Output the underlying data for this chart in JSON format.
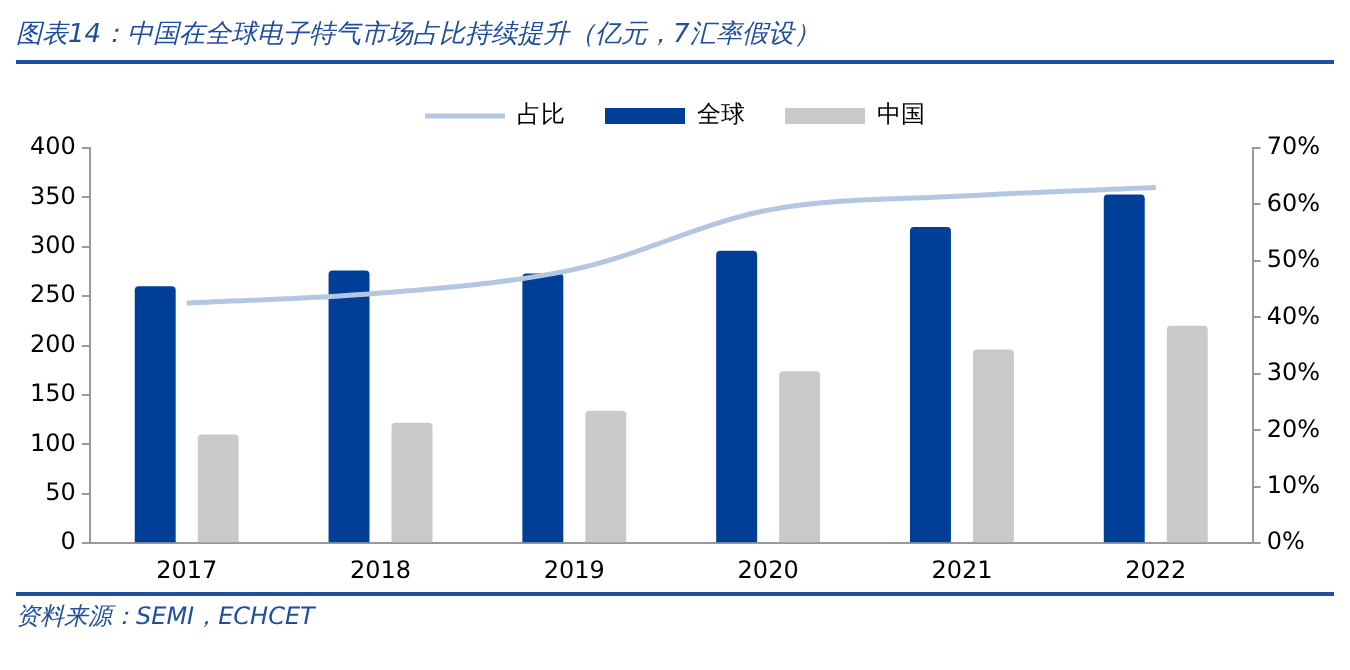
{
  "chart_data": {
    "type": "bar",
    "title": "图表14：中国在全球电子特气市场占比持续提升（亿元，7汇率假设）",
    "annotations": [
      "资料来源：SEMI，ECHCET"
    ],
    "categories": [
      "2017",
      "2018",
      "2019",
      "2020",
      "2021",
      "2022"
    ],
    "series": [
      {
        "name": "全球",
        "color": "#003f98",
        "values": [
          260,
          276,
          273,
          296,
          320,
          353
        ]
      },
      {
        "name": "中国",
        "color": "#c9c9c9",
        "values": [
          110,
          122,
          134,
          174,
          196,
          220
        ]
      },
      {
        "name": "占比",
        "type": "line",
        "axis": "y2",
        "color": "#b4c7e0",
        "values": [
          42.5,
          44.3,
          48.5,
          59,
          61.5,
          63
        ]
      }
    ],
    "ylim": [
      0,
      400
    ],
    "yticks": [
      0,
      50,
      100,
      150,
      200,
      250,
      300,
      350,
      400
    ],
    "y2lim": [
      0,
      70
    ],
    "y2ticks": [
      {
        "value": 0,
        "label": "0%"
      },
      {
        "value": 10,
        "label": "10%"
      },
      {
        "value": 20,
        "label": "20%"
      },
      {
        "value": 30,
        "label": "30%"
      },
      {
        "value": 40,
        "label": "40%"
      },
      {
        "value": 50,
        "label": "50%"
      },
      {
        "value": 60,
        "label": "60%"
      },
      {
        "value": 70,
        "label": "70%"
      }
    ],
    "legend": "top",
    "grid": false,
    "marker": "none"
  }
}
